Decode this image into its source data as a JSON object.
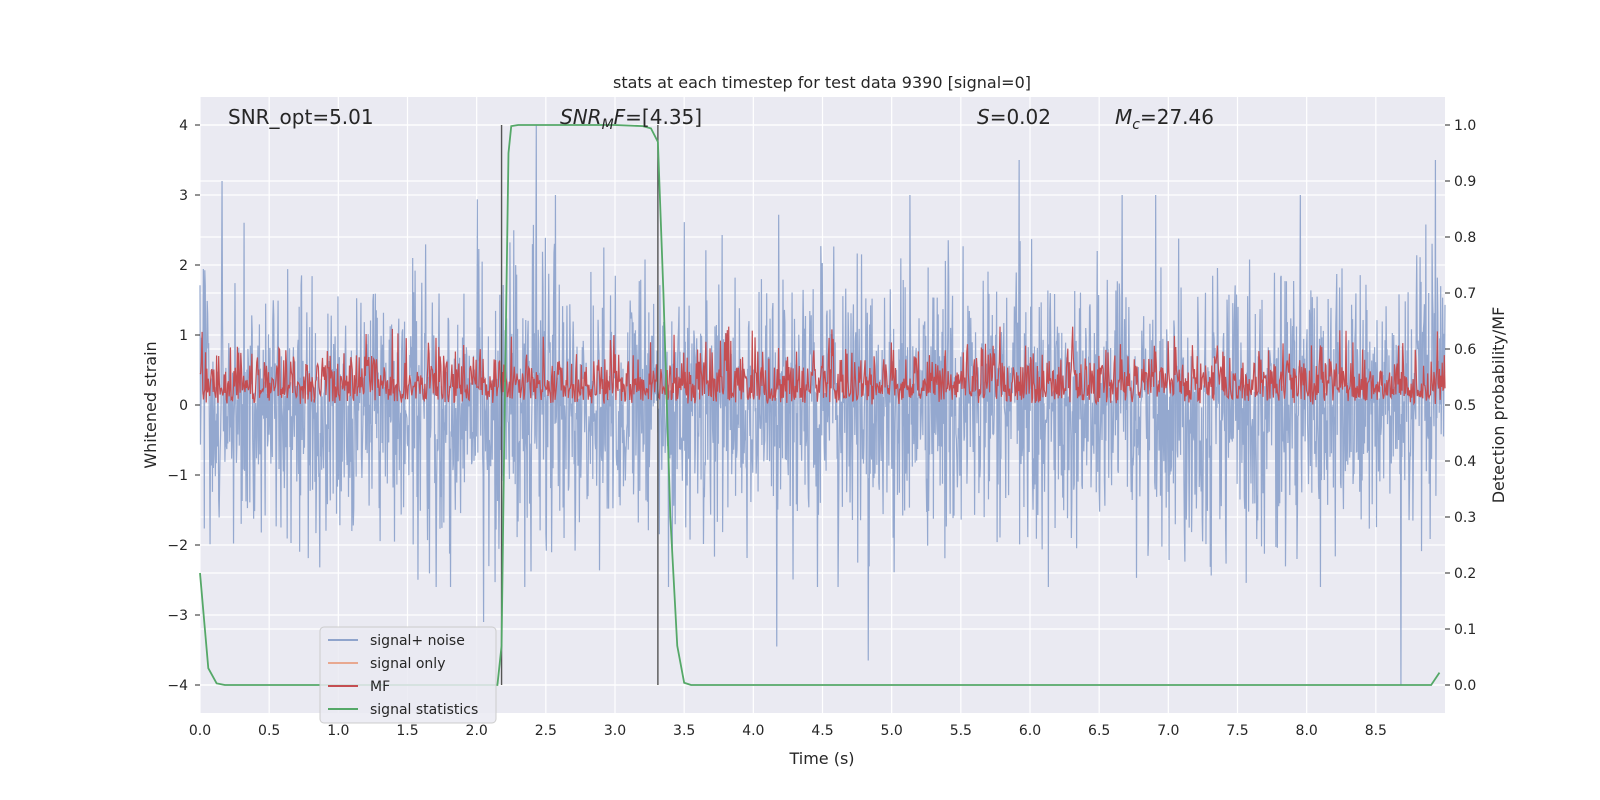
{
  "chart_data": {
    "type": "line",
    "title": "stats at each timestep for test data 9390 [signal=0]",
    "xlabel": "Time (s)",
    "ylabel": "Whitened strain",
    "y2label": "Detection probability/MF",
    "xlim": [
      0.0,
      9.0
    ],
    "ylim": [
      -4.4,
      4.4
    ],
    "y2lim": [
      -0.05,
      1.05
    ],
    "xticks": [
      "0.0",
      "0.5",
      "1.0",
      "1.5",
      "2.0",
      "2.5",
      "3.0",
      "3.5",
      "4.0",
      "4.5",
      "5.0",
      "5.5",
      "6.0",
      "6.5",
      "7.0",
      "7.5",
      "8.0",
      "8.5"
    ],
    "xtick_values": [
      0.0,
      0.5,
      1.0,
      1.5,
      2.0,
      2.5,
      3.0,
      3.5,
      4.0,
      4.5,
      5.0,
      5.5,
      6.0,
      6.5,
      7.0,
      7.5,
      8.0,
      8.5
    ],
    "yticks": [
      "4",
      "3",
      "2",
      "1",
      "0",
      "−1",
      "−2",
      "−3",
      "−4"
    ],
    "ytick_values": [
      4,
      3,
      2,
      1,
      0,
      -1,
      -2,
      -3,
      -4
    ],
    "y2ticks": [
      "1.0",
      "0.9",
      "0.8",
      "0.7",
      "0.6",
      "0.5",
      "0.4",
      "0.3",
      "0.2",
      "0.1",
      "0.0"
    ],
    "y2tick_values": [
      1.0,
      0.9,
      0.8,
      0.7,
      0.6,
      0.5,
      0.4,
      0.3,
      0.2,
      0.1,
      0.0
    ],
    "grid": true,
    "legend_position": "lower-left",
    "legend": [
      {
        "label": "signal+ noise",
        "color": "#8fa4cc"
      },
      {
        "label": "signal only",
        "color": "#e8a890"
      },
      {
        "label": "MF",
        "color": "#c44e52"
      },
      {
        "label": "signal statistics",
        "color": "#55a868"
      }
    ],
    "annotations": {
      "snr_opt": "SNR_opt=5.01",
      "snr_mf_prefix": "SNR",
      "snr_mf_sub": "M",
      "snr_mf_suffix": "F",
      "snr_mf_value": "=[4.35]",
      "s_sym": "S",
      "s_value": "=0.02",
      "mc_sym": "M",
      "mc_sub": "c",
      "mc_value": "=27.46"
    },
    "vertical_lines_x": [
      2.18,
      3.31
    ],
    "series": [
      {
        "name": "signal+ noise",
        "axis": "left",
        "description": "whitened noise, envelope approx -2.5 to 3.5 with spikes to ±4",
        "noise_std": 0.95,
        "peaks": [
          [
            0.16,
            3.2
          ],
          [
            2.43,
            4.0
          ],
          [
            5.92,
            3.5
          ],
          [
            8.93,
            3.5
          ],
          [
            2.05,
            -3.1
          ],
          [
            4.17,
            -3.45
          ],
          [
            4.83,
            -3.65
          ],
          [
            8.68,
            -4.0
          ]
        ]
      },
      {
        "name": "MF",
        "axis": "right",
        "description": "matched filter output, mostly 0.5 to 0.6 on right axis",
        "baseline": 0.5,
        "max": 0.64
      },
      {
        "name": "signal statistics",
        "axis": "right",
        "x": [
          0.0,
          0.06,
          0.12,
          0.18,
          0.5,
          1.0,
          1.5,
          2.0,
          2.15,
          2.18,
          2.2,
          2.23,
          2.25,
          2.3,
          2.5,
          2.8,
          3.0,
          3.2,
          3.26,
          3.31,
          3.35,
          3.4,
          3.45,
          3.5,
          3.55,
          4.0,
          5.0,
          6.0,
          7.0,
          8.0,
          8.5,
          8.9,
          8.96
        ],
        "y": [
          0.2,
          0.03,
          0.003,
          0.0,
          0.0,
          0.0,
          0.0,
          0.0,
          0.0,
          0.07,
          0.45,
          0.95,
          0.998,
          1.0,
          1.0,
          1.0,
          1.0,
          0.998,
          0.994,
          0.97,
          0.7,
          0.3,
          0.07,
          0.004,
          0.0,
          0.0,
          0.0,
          0.0,
          0.0,
          0.0,
          0.0,
          0.0,
          0.022
        ]
      }
    ]
  }
}
